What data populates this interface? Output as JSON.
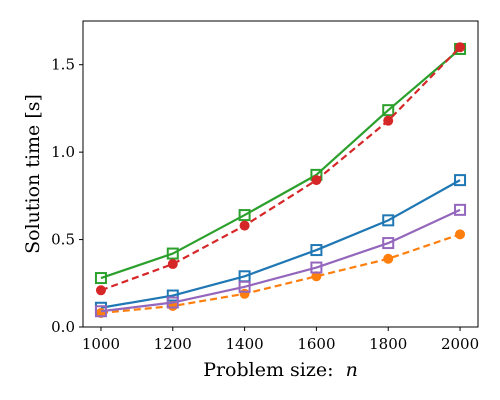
{
  "chart_data": {
    "type": "line",
    "title": "",
    "xlabel": "Problem size:",
    "xlabel_var": "n",
    "ylabel": "Solution time [s]",
    "xlim": [
      950,
      2050
    ],
    "ylim": [
      0,
      1.75
    ],
    "grid": false,
    "x": [
      1000,
      1200,
      1400,
      1600,
      1800,
      2000
    ],
    "x_ticks": [
      1000,
      1200,
      1400,
      1600,
      1800,
      2000
    ],
    "x_tick_labels": [
      "1000",
      "1200",
      "1400",
      "1600",
      "1800",
      "2000"
    ],
    "y_ticks": [
      0,
      0.5,
      1.0,
      1.5
    ],
    "y_tick_labels": [
      "0.0",
      "0.5",
      "1.0",
      "1.5"
    ],
    "series": [
      {
        "color": "#1f77b4",
        "line": "solid",
        "marker": "square-open",
        "values": [
          0.11,
          0.18,
          0.29,
          0.44,
          0.61,
          0.84
        ]
      },
      {
        "color": "#ff7f0e",
        "line": "dashed",
        "marker": "circle-filled",
        "values": [
          0.08,
          0.12,
          0.19,
          0.29,
          0.39,
          0.53
        ]
      },
      {
        "color": "#2ca02c",
        "line": "solid",
        "marker": "square-open",
        "values": [
          0.28,
          0.42,
          0.64,
          0.87,
          1.24,
          1.59
        ]
      },
      {
        "color": "#d62728",
        "line": "dashed",
        "marker": "circle-filled",
        "values": [
          0.21,
          0.36,
          0.58,
          0.84,
          1.18,
          1.6
        ]
      },
      {
        "color": "#9467bd",
        "line": "solid",
        "marker": "square-open",
        "values": [
          0.09,
          0.14,
          0.23,
          0.34,
          0.48,
          0.67
        ]
      }
    ]
  }
}
